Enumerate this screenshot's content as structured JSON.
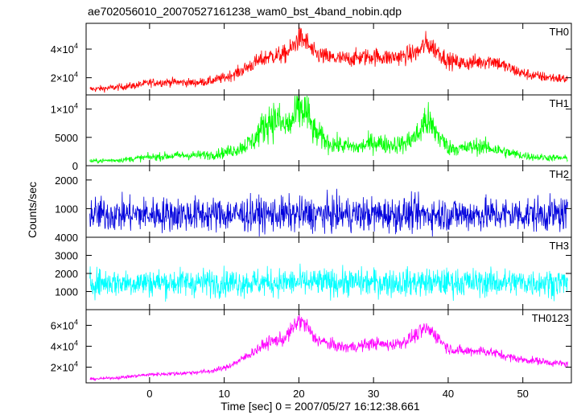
{
  "title": "ae702056010_20070527161238_wam0_bst_4band_nobin.qdp",
  "chart_data": {
    "type": "line",
    "xlabel": "Time [sec] 0 = 2007/05/27 16:12:38.661",
    "ylabel": "Counts/sec",
    "xlim": [
      -8.5,
      56.5
    ],
    "x_ticks": [
      0,
      10,
      20,
      30,
      40,
      50
    ],
    "x_tick_labels": [
      "0",
      "10",
      "20",
      "30",
      "40",
      "50"
    ],
    "grid": false,
    "panels": [
      {
        "name": "TH0",
        "color": "#ff0000",
        "ylim": [
          8000,
          58000
        ],
        "y_ticks": [
          20000,
          40000
        ],
        "y_tick_labels": [
          [
            "2",
            "4"
          ],
          [
            "4",
            "4"
          ]
        ],
        "noise": 0.09,
        "profile": [
          [
            -8,
            12000
          ],
          [
            -6,
            12500
          ],
          [
            -4,
            13500
          ],
          [
            -2,
            14500
          ],
          [
            0,
            16500
          ],
          [
            3,
            17000
          ],
          [
            6,
            16500
          ],
          [
            8,
            17500
          ],
          [
            10,
            20000
          ],
          [
            12,
            24000
          ],
          [
            14,
            30000
          ],
          [
            16,
            35000
          ],
          [
            18,
            36000
          ],
          [
            19,
            40000
          ],
          [
            20,
            48000
          ],
          [
            21,
            45000
          ],
          [
            22,
            37000
          ],
          [
            24,
            34000
          ],
          [
            26,
            33000
          ],
          [
            28,
            34000
          ],
          [
            30,
            35000
          ],
          [
            32,
            34000
          ],
          [
            34,
            35000
          ],
          [
            36,
            38000
          ],
          [
            37,
            44000
          ],
          [
            38,
            41000
          ],
          [
            40,
            32000
          ],
          [
            42,
            30000
          ],
          [
            44,
            31000
          ],
          [
            46,
            32000
          ],
          [
            48,
            27000
          ],
          [
            50,
            23000
          ],
          [
            52,
            21000
          ],
          [
            54,
            20000
          ],
          [
            56,
            19000
          ]
        ]
      },
      {
        "name": "TH1",
        "color": "#00ff00",
        "ylim": [
          0,
          12500
        ],
        "y_ticks": [
          0,
          5000,
          10000
        ],
        "y_tick_labels": [
          [
            "0",
            ""
          ],
          [
            "5000",
            ""
          ],
          [
            "1",
            "4"
          ]
        ],
        "noise": 0.22,
        "profile": [
          [
            -8,
            800
          ],
          [
            -4,
            1000
          ],
          [
            0,
            1500
          ],
          [
            4,
            1800
          ],
          [
            8,
            1900
          ],
          [
            10,
            2300
          ],
          [
            12,
            3000
          ],
          [
            14,
            4500
          ],
          [
            15,
            6500
          ],
          [
            16,
            8000
          ],
          [
            17,
            8200
          ],
          [
            18,
            7000
          ],
          [
            19,
            7500
          ],
          [
            20,
            10000
          ],
          [
            21,
            9500
          ],
          [
            22,
            6000
          ],
          [
            24,
            4000
          ],
          [
            26,
            3500
          ],
          [
            28,
            3200
          ],
          [
            30,
            4200
          ],
          [
            32,
            3700
          ],
          [
            34,
            3800
          ],
          [
            36,
            5500
          ],
          [
            37,
            8200
          ],
          [
            38,
            6500
          ],
          [
            40,
            3200
          ],
          [
            42,
            3000
          ],
          [
            44,
            3500
          ],
          [
            46,
            3000
          ],
          [
            48,
            2300
          ],
          [
            50,
            1800
          ],
          [
            52,
            1500
          ],
          [
            54,
            1400
          ],
          [
            56,
            1300
          ]
        ]
      },
      {
        "name": "TH2",
        "color": "#0000dd",
        "ylim": [
          0,
          2500
        ],
        "y_ticks": [
          1000,
          2000
        ],
        "y_tick_labels": [
          [
            "1000",
            ""
          ],
          [
            "2000",
            ""
          ]
        ],
        "noise": 0.38,
        "profile": [
          [
            -8,
            800
          ],
          [
            56,
            800
          ]
        ]
      },
      {
        "name": "TH3",
        "color": "#00ffff",
        "ylim": [
          0,
          4000
        ],
        "y_ticks": [
          1000,
          2000,
          3000,
          4000
        ],
        "y_tick_labels": [
          [
            "1000",
            ""
          ],
          [
            "2000",
            ""
          ],
          [
            "3000",
            ""
          ],
          [
            "4000",
            ""
          ]
        ],
        "noise": 0.26,
        "profile": [
          [
            -8,
            1500
          ],
          [
            56,
            1500
          ]
        ]
      },
      {
        "name": "TH0123",
        "color": "#ff00ff",
        "ylim": [
          5000,
          75000
        ],
        "y_ticks": [
          20000,
          40000,
          60000
        ],
        "y_tick_labels": [
          [
            "2",
            "4"
          ],
          [
            "4",
            "4"
          ],
          [
            "6",
            "4"
          ]
        ],
        "noise": 0.07,
        "profile": [
          [
            -8,
            8500
          ],
          [
            -4,
            10000
          ],
          [
            0,
            13000
          ],
          [
            4,
            14000
          ],
          [
            8,
            16000
          ],
          [
            10,
            19000
          ],
          [
            12,
            26000
          ],
          [
            14,
            35000
          ],
          [
            16,
            44000
          ],
          [
            18,
            47000
          ],
          [
            19,
            55000
          ],
          [
            20,
            65000
          ],
          [
            21,
            60000
          ],
          [
            22,
            48000
          ],
          [
            24,
            42000
          ],
          [
            26,
            39000
          ],
          [
            28,
            40000
          ],
          [
            30,
            43000
          ],
          [
            32,
            41000
          ],
          [
            34,
            44000
          ],
          [
            36,
            52000
          ],
          [
            37,
            57000
          ],
          [
            38,
            53000
          ],
          [
            40,
            38000
          ],
          [
            42,
            35000
          ],
          [
            44,
            36000
          ],
          [
            46,
            34000
          ],
          [
            48,
            30000
          ],
          [
            50,
            27000
          ],
          [
            52,
            26000
          ],
          [
            54,
            24000
          ],
          [
            56,
            23000
          ]
        ]
      }
    ]
  }
}
